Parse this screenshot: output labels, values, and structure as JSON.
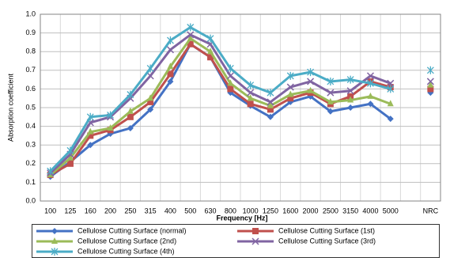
{
  "chart_data": {
    "type": "line",
    "x_label": "Frequency [Hz]",
    "y_label": "Absorption coefficient",
    "categories": [
      "100",
      "125",
      "160",
      "200",
      "250",
      "315",
      "400",
      "500",
      "630",
      "800",
      "1000",
      "1250",
      "1600",
      "2000",
      "2500",
      "3150",
      "4000",
      "5000",
      null,
      "NRC"
    ],
    "series": [
      {
        "name": "Cellulose Cutting Surface (normal)",
        "color": "#4472c4",
        "marker": "diamond",
        "values": [
          0.13,
          0.21,
          0.3,
          0.36,
          0.39,
          0.49,
          0.64,
          0.84,
          0.77,
          0.58,
          0.51,
          0.45,
          0.53,
          0.56,
          0.48,
          0.5,
          0.52,
          0.44,
          null,
          0.58
        ]
      },
      {
        "name": "Cellulose Cutting Surface (1st)",
        "color": "#c0504d",
        "marker": "square",
        "values": [
          0.14,
          0.2,
          0.35,
          0.38,
          0.45,
          0.53,
          0.68,
          0.84,
          0.77,
          0.6,
          0.52,
          0.49,
          0.55,
          0.58,
          0.52,
          0.56,
          0.64,
          0.61,
          null,
          0.6
        ]
      },
      {
        "name": "Cellulose Cutting Surface (2nd)",
        "color": "#9bbb59",
        "marker": "triangle",
        "values": [
          0.14,
          0.23,
          0.37,
          0.39,
          0.48,
          0.55,
          0.72,
          0.87,
          0.8,
          0.63,
          0.55,
          0.51,
          0.57,
          0.59,
          0.53,
          0.54,
          0.56,
          0.52,
          null,
          0.62
        ]
      },
      {
        "name": "Cellulose Cutting Surface (3rd)",
        "color": "#8064a2",
        "marker": "x",
        "values": [
          0.15,
          0.25,
          0.42,
          0.45,
          0.55,
          0.67,
          0.81,
          0.89,
          0.84,
          0.67,
          0.58,
          0.53,
          0.61,
          0.64,
          0.58,
          0.59,
          0.67,
          0.63,
          null,
          0.64
        ]
      },
      {
        "name": "Cellulose Cutting Surface (4th)",
        "color": "#4bacc6",
        "marker": "star",
        "values": [
          0.16,
          0.27,
          0.45,
          0.46,
          0.57,
          0.71,
          0.86,
          0.93,
          0.87,
          0.71,
          0.62,
          0.58,
          0.67,
          0.69,
          0.64,
          0.65,
          0.63,
          0.6,
          null,
          0.7
        ]
      }
    ],
    "ylim": [
      0,
      1
    ],
    "yticks": [
      {
        "value": 0,
        "label": "0.0"
      },
      0.1,
      0.2,
      0.3,
      0.4,
      0.5,
      0.6,
      0.7,
      0.8,
      0.9,
      {
        "value": 1,
        "label": "1.0"
      }
    ],
    "grid": true
  }
}
